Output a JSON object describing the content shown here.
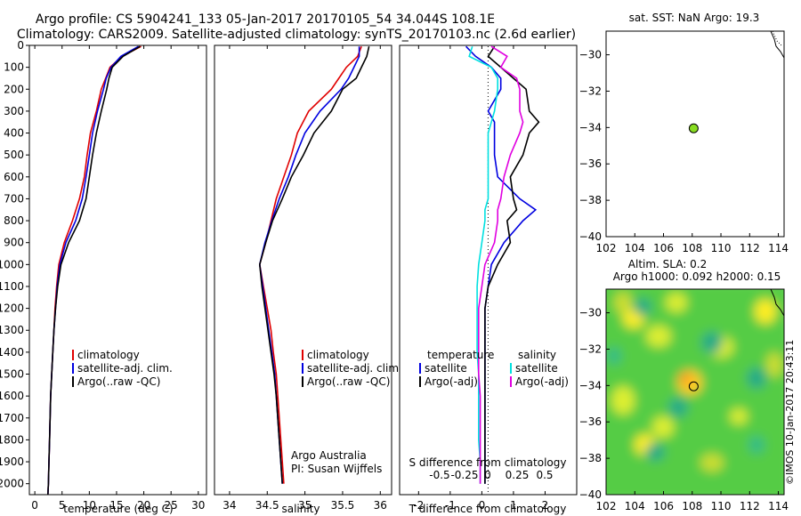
{
  "header": {
    "line1": "Argo profile: CS 5904241_133 05-Jan-2017 20170105_54 34.044S 108.1E",
    "line2": "Climatology: CARS2009. Satellite-adjusted climatology: synTS_20170103.nc (2.6d earlier)"
  },
  "colors": {
    "climatology": "#e00000",
    "satellite": "#0000e0",
    "argo": "#000000",
    "sat_salinity": "#00e0e0",
    "argo_salinity": "#e000e0",
    "float": "#88dd22"
  },
  "chart_data": [
    {
      "type": "line",
      "panel": "temperature",
      "xlabel": "temperature (deg C)",
      "xlim": [
        -1,
        31.5
      ],
      "ylim": [
        2050,
        0
      ],
      "xticks": [
        0,
        5,
        10,
        15,
        20,
        25,
        30
      ],
      "yticks": [
        0,
        100,
        200,
        300,
        400,
        500,
        600,
        700,
        800,
        900,
        1000,
        1100,
        1200,
        1300,
        1400,
        1500,
        1600,
        1700,
        1800,
        1900,
        2000
      ],
      "legend": [
        "climatology",
        "satellite-adj. clim.",
        "Argo(..raw -QC)"
      ],
      "depth": [
        5,
        50,
        100,
        150,
        200,
        300,
        400,
        500,
        600,
        700,
        800,
        900,
        1000,
        1100,
        1200,
        1300,
        1400,
        1500,
        1600,
        1700,
        1800,
        1900,
        2000,
        2050
      ],
      "series": [
        {
          "name": "climatology",
          "color": "#e00000",
          "values": [
            19.5,
            16.0,
            13.8,
            13.0,
            12.2,
            11.3,
            10.2,
            9.6,
            9.1,
            8.2,
            6.9,
            5.4,
            4.4,
            4.0,
            3.7,
            3.5,
            3.3,
            3.1,
            2.9,
            2.8,
            2.7,
            2.6,
            2.5,
            2.4
          ]
        },
        {
          "name": "satellite-adj. clim.",
          "color": "#0000e0",
          "values": [
            19.0,
            15.8,
            14.0,
            13.1,
            12.6,
            11.5,
            10.6,
            10.0,
            9.4,
            8.7,
            7.5,
            5.7,
            4.6,
            4.1,
            3.8,
            3.5,
            3.3,
            3.1,
            2.9,
            2.8,
            2.7,
            2.6,
            2.5,
            2.4
          ]
        },
        {
          "name": "Argo(..raw -QC)",
          "color": "#000000",
          "values": [
            19.3,
            16.2,
            14.2,
            13.6,
            13.2,
            12.2,
            11.3,
            10.6,
            10.0,
            9.4,
            8.2,
            6.2,
            4.8,
            4.2,
            3.8,
            3.5,
            3.3,
            3.1,
            2.9,
            2.8,
            2.7,
            2.6,
            2.5,
            2.4
          ]
        }
      ]
    },
    {
      "type": "line",
      "panel": "salinity",
      "xlabel": "salinity",
      "xlim": [
        33.8,
        36.15
      ],
      "ylim": [
        2050,
        0
      ],
      "xticks": [
        34,
        34.5,
        35,
        35.5,
        36
      ],
      "legend": [
        "climatology",
        "satellite-adj. clim.",
        "Argo(..raw -QC)"
      ],
      "annotation": [
        "Argo Australia",
        "PI: Susan Wijffels"
      ],
      "depth": [
        5,
        50,
        100,
        150,
        200,
        300,
        400,
        500,
        600,
        700,
        800,
        900,
        1000,
        1100,
        1200,
        1300,
        1400,
        1500,
        1600,
        1700,
        1800,
        1900,
        2000
      ],
      "series": [
        {
          "name": "climatology",
          "color": "#e00000",
          "values": [
            35.75,
            35.7,
            35.55,
            35.45,
            35.35,
            35.05,
            34.9,
            34.82,
            34.72,
            34.62,
            34.55,
            34.48,
            34.4,
            34.45,
            34.5,
            34.55,
            34.58,
            34.62,
            34.64,
            34.66,
            34.68,
            34.7,
            34.72
          ]
        },
        {
          "name": "satellite-adj. clim.",
          "color": "#0000e0",
          "values": [
            35.72,
            35.72,
            35.65,
            35.58,
            35.48,
            35.2,
            35.0,
            34.88,
            34.78,
            34.66,
            34.56,
            34.47,
            34.4,
            34.44,
            34.48,
            34.52,
            34.56,
            34.6,
            34.62,
            34.64,
            34.66,
            34.68,
            34.7
          ]
        },
        {
          "name": "Argo(..raw -QC)",
          "color": "#000000",
          "values": [
            35.85,
            35.82,
            35.75,
            35.68,
            35.5,
            35.35,
            35.12,
            34.98,
            34.82,
            34.7,
            34.57,
            34.48,
            34.4,
            34.43,
            34.47,
            34.51,
            34.55,
            34.59,
            34.62,
            34.64,
            34.66,
            34.68,
            34.7
          ]
        }
      ]
    },
    {
      "type": "line",
      "panel": "difference",
      "xlabel": "T difference from climatology",
      "xlabel_top": "S difference from climatology",
      "xlim": [
        -2.6,
        3.0
      ],
      "ylim": [
        2050,
        0
      ],
      "xticks": [
        -2,
        -1,
        0,
        1,
        2
      ],
      "sticks_labels": [
        "-0.5",
        "-0.25",
        "0",
        "0.25",
        "0.5"
      ],
      "legend_headers": [
        "temperature",
        "salinity"
      ],
      "legend": [
        "satellite",
        "Argo(-adj)",
        "satellite",
        "Argo(-adj)"
      ],
      "depth": [
        5,
        50,
        100,
        150,
        200,
        300,
        350,
        400,
        500,
        600,
        700,
        750,
        800,
        900,
        1000,
        1100,
        1200,
        1300,
        1400,
        1500,
        1600,
        1700,
        1800,
        1900,
        2000
      ],
      "series": [
        {
          "name": "satellite",
          "quantity": "temperature",
          "color": "#0000e0",
          "values": [
            -0.5,
            -0.2,
            0.3,
            0.6,
            0.6,
            0.2,
            0.4,
            0.4,
            0.4,
            0.5,
            1.2,
            1.7,
            1.3,
            0.7,
            0.3,
            0.2,
            0.1,
            0.1,
            0.1,
            0.1,
            0.1,
            0.1,
            0.1,
            0.1,
            0.1
          ]
        },
        {
          "name": "Argo(-adj)",
          "quantity": "temperature",
          "color": "#000000",
          "values": [
            0.4,
            0.2,
            0.6,
            1.0,
            1.4,
            1.5,
            1.8,
            1.5,
            1.3,
            0.9,
            1.0,
            1.1,
            0.8,
            0.9,
            0.5,
            0.2,
            0.1,
            0.1,
            0.1,
            0.1,
            0.1,
            0.1,
            0.1,
            0.1,
            0.1
          ]
        },
        {
          "name": "satellite",
          "quantity": "salinity",
          "color": "#00e0e0",
          "values": [
            -0.3,
            -0.4,
            0.3,
            0.5,
            0.5,
            0.4,
            0.3,
            0.2,
            0.2,
            0.2,
            0.2,
            0.1,
            0.1,
            0.0,
            -0.1,
            -0.15,
            -0.15,
            -0.15,
            -0.15,
            -0.1,
            -0.1,
            -0.1,
            -0.1,
            -0.05,
            -0.05
          ]
        },
        {
          "name": "Argo(-adj)",
          "quantity": "salinity",
          "color": "#e000e0",
          "values": [
            0.3,
            0.8,
            0.6,
            1.1,
            1.2,
            1.2,
            1.3,
            1.2,
            0.9,
            0.7,
            0.6,
            0.5,
            0.5,
            0.4,
            0.1,
            0.0,
            -0.1,
            -0.1,
            -0.1,
            -0.1,
            -0.05,
            -0.05,
            -0.05,
            -0.05,
            -0.05
          ]
        }
      ]
    },
    {
      "type": "scatter",
      "panel": "map-sst",
      "title": "sat. SST: NaN Argo: 19.3",
      "xlim": [
        102,
        114.4
      ],
      "ylim": [
        -40,
        -28.7
      ],
      "xticks": [
        102,
        104,
        106,
        108,
        110,
        112,
        114
      ],
      "yticks": [
        -30,
        -32,
        -34,
        -36,
        -38,
        -40
      ],
      "points": [
        {
          "x": 108.1,
          "y": -34.044
        }
      ]
    },
    {
      "type": "heatmap",
      "panel": "map-sla",
      "title": [
        "Altim. SLA: 0.2",
        "Argo h1000: 0.092 h2000: 0.15"
      ],
      "xlim": [
        102,
        114.4
      ],
      "ylim": [
        -40,
        -28.7
      ],
      "xticks": [
        102,
        104,
        106,
        108,
        110,
        112,
        114
      ],
      "yticks": [
        -30,
        -32,
        -34,
        -36,
        -38,
        -40
      ],
      "points": [
        {
          "x": 108.1,
          "y": -34.044
        }
      ]
    }
  ],
  "watermark": "©IMOS 10-Jan-2017 20:43:11"
}
